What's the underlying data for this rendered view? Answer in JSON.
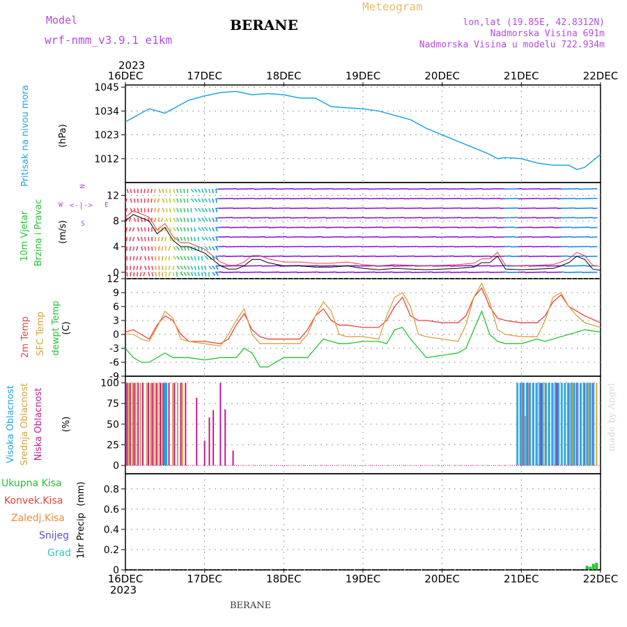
{
  "header": {
    "model_label": "Model",
    "model_name": "wrf-nmm_v3.9.1 e1km",
    "station": "BERANE",
    "meteogram": "Meteogram",
    "lonlat": "lon,lat (19.85E, 42.8312N)",
    "elevation": "Nadmorska Visina 691m",
    "model_elevation": "Nadmorska Visina u modelu 722.934m"
  },
  "footer": {
    "station": "BERANE"
  },
  "watermark": "made by Angel",
  "time_axis": {
    "year": "2023",
    "ticks": [
      "16DEC",
      "17DEC",
      "18DEC",
      "19DEC",
      "20DEC",
      "21DEC",
      "22DEC"
    ]
  },
  "colors": {
    "pressure": "#1fa3e6",
    "t2m": "#e8413c",
    "sfc": "#d8a23c",
    "dew": "#22c430",
    "high_cloud": "#1fa3e6",
    "mid_cloud": "#d8a23c",
    "low_cloud": "#c21a8c",
    "total_rain": "#22c430",
    "wind_calm": "#8a1ce0"
  },
  "panels": {
    "pressure": {
      "label": "Pritisak na nivou mora",
      "unit": "(hPa)",
      "ticks": [
        "1045",
        "1034",
        "1023",
        "1012"
      ]
    },
    "wind": {
      "label1": "10m Vjetar",
      "label2": "Brzina i Pravac",
      "unit": "(m/s)",
      "ticks": [
        "12",
        "8",
        "4",
        "0"
      ],
      "compass": {
        "n": "N",
        "s": "S",
        "e": "E",
        "w": "W"
      }
    },
    "temp": {
      "label1": "2m Temp",
      "label2": "SFC Temp",
      "label3": "dewpt Temp",
      "unit": "(C)",
      "ticks": [
        "12",
        "9",
        "6",
        "3",
        "0",
        "-3",
        "-6",
        "-9"
      ]
    },
    "cloud": {
      "label1": "Visoka Oblacnost",
      "label2": "Srednja Oblacnost",
      "label3": "Niska Oblacnost",
      "unit": "(%)",
      "ticks": [
        "100",
        "75",
        "50",
        "25",
        "0"
      ]
    },
    "precip": {
      "label_total": "Ukupna Kisa",
      "label_conv": "Konvek.Kisa",
      "label_frz": "Zaledj.Kisa",
      "label_snow": "Snijeg",
      "label_hail": "Grad",
      "label_axis": "1hr Precip",
      "unit": "(mm)",
      "ticks": [
        "0.8",
        "0.6",
        "0.4",
        "0.2",
        "0"
      ]
    }
  },
  "chart_data": [
    {
      "type": "line",
      "name": "pressure",
      "xlim": [
        0,
        6
      ],
      "ylim": [
        1001,
        1046
      ],
      "x": [
        0,
        0.1,
        0.2,
        0.3,
        0.4,
        0.5,
        0.6,
        0.7,
        0.8,
        1.0,
        1.2,
        1.4,
        1.6,
        1.8,
        2.0,
        2.2,
        2.4,
        2.6,
        2.8,
        3.0,
        3.2,
        3.4,
        3.6,
        3.8,
        4.0,
        4.2,
        4.4,
        4.6,
        4.7,
        4.8,
        5.0,
        5.2,
        5.4,
        5.6,
        5.7,
        5.8,
        6.0
      ],
      "series": [
        {
          "values": [
            1029,
            1031,
            1033,
            1035,
            1034,
            1033,
            1035,
            1037,
            1039,
            1041,
            1042.5,
            1043,
            1041.5,
            1042,
            1041.5,
            1040,
            1040,
            1036,
            1035.5,
            1035,
            1034,
            1032,
            1030,
            1026,
            1023,
            1020,
            1017,
            1014,
            1012,
            1012.5,
            1012,
            1010,
            1009,
            1009,
            1007,
            1008,
            1014
          ]
        }
      ]
    },
    {
      "type": "line",
      "name": "wind_speed",
      "xlim": [
        0,
        6
      ],
      "ylim": [
        -1,
        14
      ],
      "x": [
        0,
        0.1,
        0.2,
        0.3,
        0.4,
        0.5,
        0.6,
        0.7,
        0.8,
        0.9,
        1.0,
        1.1,
        1.2,
        1.3,
        1.4,
        1.5,
        1.6,
        1.7,
        1.8,
        2.0,
        2.2,
        2.4,
        2.6,
        2.8,
        3.0,
        3.2,
        3.4,
        3.6,
        3.8,
        4.0,
        4.2,
        4.4,
        4.5,
        4.6,
        4.7,
        4.8,
        5.0,
        5.2,
        5.4,
        5.5,
        5.6,
        5.7,
        5.8,
        5.9,
        6.0
      ],
      "series": [
        {
          "values": [
            8,
            9,
            8.5,
            8,
            6,
            7,
            5,
            4,
            4,
            3.5,
            3,
            2,
            1,
            0.5,
            0.5,
            1,
            2,
            2,
            1.5,
            1,
            1,
            0.8,
            0.8,
            1,
            0.6,
            0.4,
            0.6,
            0.5,
            0.4,
            0.5,
            0.6,
            0.8,
            1.5,
            1.5,
            2.5,
            0.5,
            0.4,
            0.5,
            0.6,
            1,
            1.5,
            2.5,
            2,
            0.5,
            0.3
          ]
        }
      ]
    },
    {
      "type": "line",
      "name": "temperature",
      "xlim": [
        0,
        6
      ],
      "ylim": [
        -9,
        12
      ],
      "x": [
        0,
        0.1,
        0.2,
        0.3,
        0.4,
        0.5,
        0.6,
        0.7,
        0.8,
        1.0,
        1.2,
        1.3,
        1.4,
        1.5,
        1.6,
        1.7,
        1.8,
        2.0,
        2.2,
        2.3,
        2.4,
        2.5,
        2.6,
        2.7,
        2.8,
        3.0,
        3.2,
        3.3,
        3.4,
        3.5,
        3.6,
        3.7,
        3.8,
        4.0,
        4.2,
        4.3,
        4.4,
        4.5,
        4.6,
        4.7,
        4.8,
        5.0,
        5.2,
        5.3,
        5.4,
        5.5,
        5.6,
        5.7,
        5.8,
        6.0
      ],
      "series": [
        {
          "values": [
            0.5,
            1,
            0,
            -1,
            2,
            4,
            3,
            0,
            -1.5,
            -1.5,
            -2,
            -1,
            2,
            4.5,
            1,
            -0.5,
            -1,
            -1,
            -1,
            1,
            4,
            5.5,
            3,
            2,
            2,
            1.5,
            1.5,
            3,
            6,
            8,
            4,
            3,
            3,
            2.5,
            2.5,
            4,
            8,
            10,
            6,
            3.5,
            3,
            2.5,
            2.5,
            4,
            7,
            8.5,
            6,
            5,
            4,
            2.5
          ]
        },
        {
          "values": [
            0,
            0,
            -1,
            -1.5,
            1.5,
            5,
            3.5,
            -1,
            -1.5,
            -2,
            -2.5,
            0,
            3,
            5.5,
            0,
            -2,
            -2,
            -2,
            -2,
            0,
            4,
            7,
            5,
            0,
            -0.5,
            -0.5,
            -1,
            4,
            8,
            9,
            6,
            0,
            -0.5,
            -1,
            -1.5,
            2,
            8,
            11,
            7,
            1,
            0,
            -0.5,
            -0.5,
            3,
            8,
            9,
            6,
            4,
            2.5,
            1.5
          ]
        },
        {
          "values": [
            -3,
            -5,
            -6,
            -6,
            -5,
            -4,
            -5,
            -5,
            -5,
            -5.5,
            -5,
            -5,
            -5,
            -3,
            -4,
            -7,
            -7,
            -5,
            -5,
            -5,
            -3,
            -1,
            -1.5,
            -2,
            -2,
            -1.5,
            -1.5,
            -2,
            1,
            1.5,
            -1,
            -3,
            -5,
            -4.5,
            -4,
            -3,
            1,
            5,
            0,
            -1.5,
            -2,
            -2,
            -1,
            -1.5,
            -1,
            -0.5,
            0,
            0.5,
            1,
            0.5
          ]
        }
      ]
    },
    {
      "type": "bar",
      "name": "cloud_cover",
      "xlim": [
        0,
        6
      ],
      "ylim": [
        0,
        100
      ],
      "series": [
        {
          "values": [
            [
              0.5,
              100
            ],
            [
              0.51,
              100
            ]
          ]
        },
        {
          "values": [
            [
              0.04,
              100
            ],
            [
              0.09,
              100
            ],
            [
              0.13,
              100
            ],
            [
              0.19,
              100
            ],
            [
              0.27,
              100
            ],
            [
              0.32,
              100
            ],
            [
              0.36,
              100
            ],
            [
              0.41,
              100
            ],
            [
              0.46,
              100
            ],
            [
              0.52,
              100
            ],
            [
              0.6,
              100
            ],
            [
              0.66,
              100
            ],
            [
              0.72,
              100
            ],
            [
              5.0,
              100
            ],
            [
              5.05,
              60
            ],
            [
              5.1,
              100
            ],
            [
              5.2,
              100
            ],
            [
              5.3,
              100
            ],
            [
              5.4,
              100
            ],
            [
              5.55,
              100
            ],
            [
              5.65,
              100
            ],
            [
              5.75,
              100
            ],
            [
              5.85,
              100
            ],
            [
              5.95,
              100
            ]
          ]
        },
        {
          "values": [
            [
              0.02,
              100
            ],
            [
              0.06,
              100
            ],
            [
              0.11,
              100
            ],
            [
              0.16,
              100
            ],
            [
              0.22,
              100
            ],
            [
              0.29,
              100
            ],
            [
              0.34,
              100
            ],
            [
              0.39,
              100
            ],
            [
              0.44,
              100
            ],
            [
              0.48,
              100
            ],
            [
              0.55,
              100
            ],
            [
              0.62,
              100
            ],
            [
              0.7,
              100
            ],
            [
              0.76,
              100
            ],
            [
              0.9,
              82
            ],
            [
              1.0,
              30
            ],
            [
              1.06,
              58
            ],
            [
              1.11,
              67
            ],
            [
              1.2,
              100
            ],
            [
              1.26,
              68
            ],
            [
              1.36,
              18
            ],
            [
              5.02,
              100
            ],
            [
              5.08,
              100
            ],
            [
              5.15,
              100
            ],
            [
              5.25,
              100
            ],
            [
              5.35,
              100
            ],
            [
              5.45,
              100
            ],
            [
              5.6,
              100
            ],
            [
              5.7,
              100
            ],
            [
              5.8,
              100
            ],
            [
              5.9,
              100
            ]
          ]
        }
      ]
    },
    {
      "type": "bar",
      "name": "precipitation",
      "xlim": [
        0,
        6
      ],
      "ylim": [
        0,
        0.95
      ],
      "series": [
        {
          "values": [
            [
              5.83,
              0.04
            ],
            [
              5.87,
              0.03
            ],
            [
              5.91,
              0.06
            ],
            [
              5.95,
              0.07
            ]
          ]
        }
      ]
    }
  ]
}
